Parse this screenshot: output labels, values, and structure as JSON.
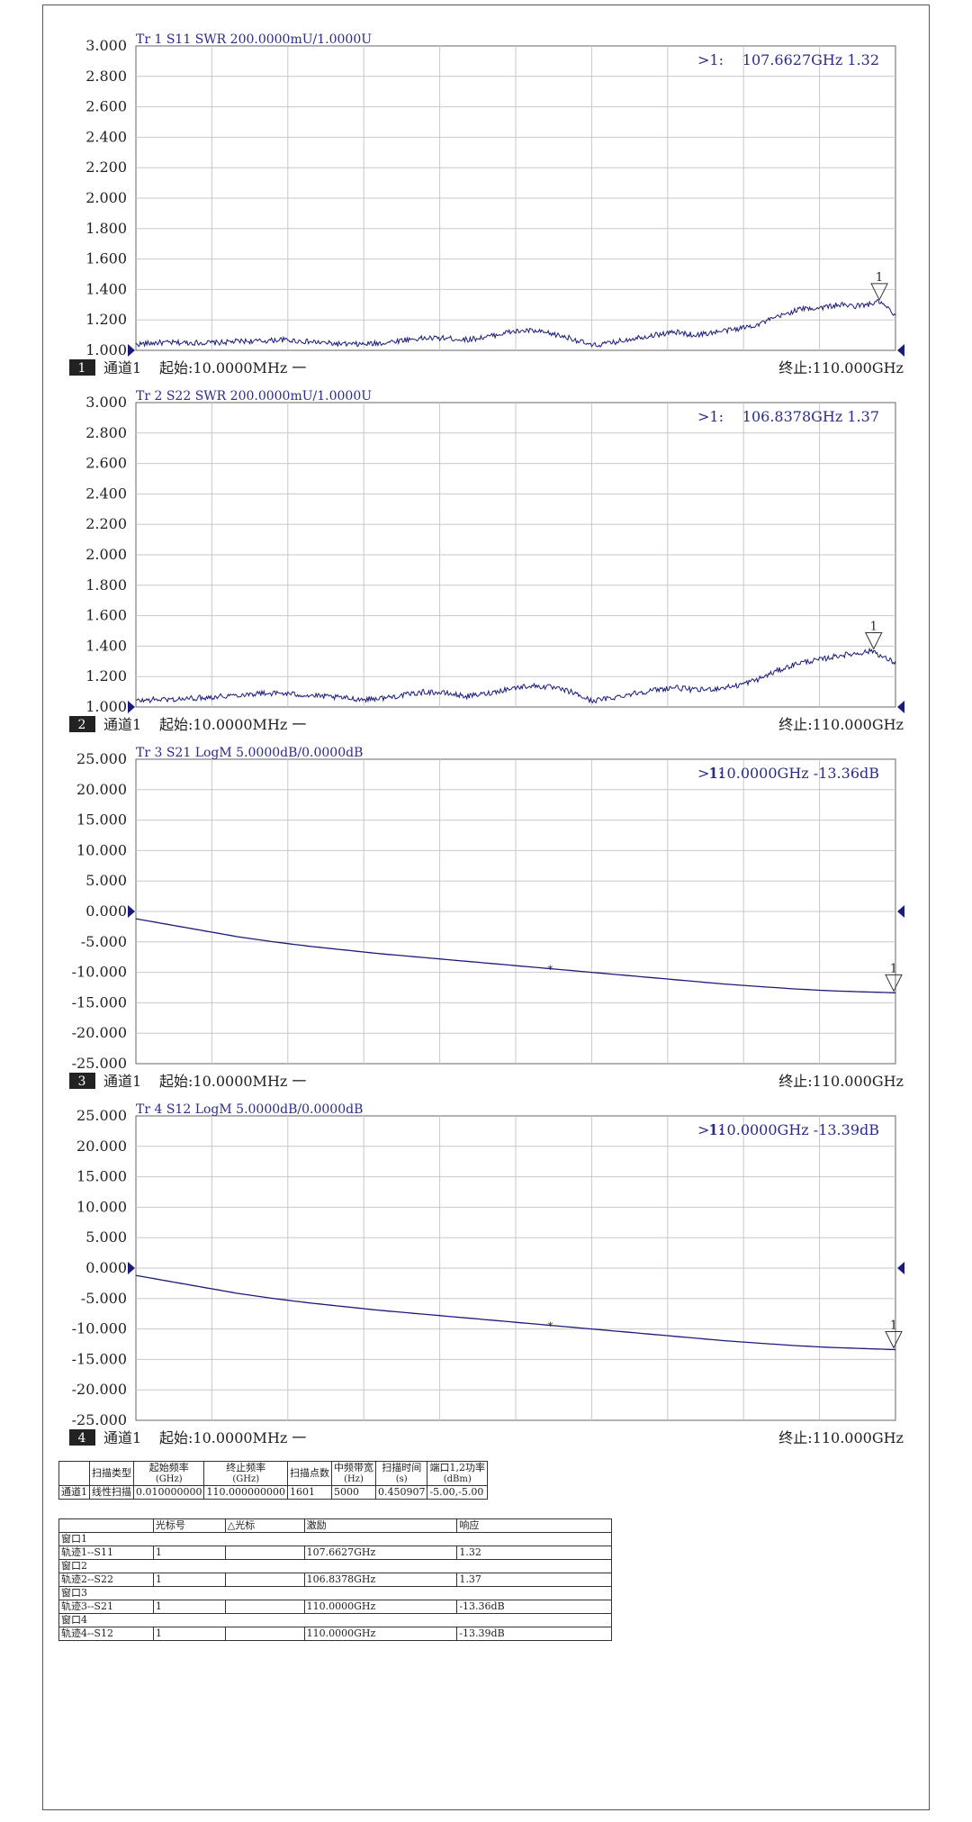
{
  "charts": [
    {
      "index": "1",
      "trace_title": "Tr 1  S11 SWR 200.0000mU/1.0000U",
      "marker_readout_prefix": ">1:",
      "marker_readout_value": "107.6627GHz 1.32",
      "marker_label": "1",
      "footer_channel": "通道1",
      "footer_start": "起始:10.0000MHz 一",
      "footer_stop": "终止:110.000GHz",
      "trace_color": "#1b1b7a"
    },
    {
      "index": "2",
      "trace_title": "Tr 2  S22 SWR 200.0000mU/1.0000U",
      "marker_readout_prefix": ">1:",
      "marker_readout_value": "106.8378GHz 1.37",
      "marker_label": "1",
      "footer_channel": "通道1",
      "footer_start": "起始:10.0000MHz 一",
      "footer_stop": "终止:110.000GHz",
      "trace_color": "#1b1b7a"
    },
    {
      "index": "3",
      "trace_title": "Tr 3  S21 LogM 5.0000dB/0.0000dB",
      "marker_readout_prefix": ">1:",
      "marker_readout_value": "110.0000GHz -13.36dB",
      "marker_label": "1",
      "footer_channel": "通道1",
      "footer_start": "起始:10.0000MHz 一",
      "footer_stop": "终止:110.000GHz",
      "trace_color": "#1b1b7a"
    },
    {
      "index": "4",
      "trace_title": "Tr 4  S12 LogM 5.0000dB/0.0000dB",
      "marker_readout_prefix": ">1:",
      "marker_readout_value": "110.0000GHz -13.39dB",
      "marker_label": "1",
      "footer_channel": "通道1",
      "footer_start": "起始:10.0000MHz 一",
      "footer_stop": "终止:110.000GHz",
      "trace_color": "#1b1b7a"
    }
  ],
  "chart_data": [
    {
      "type": "line",
      "title": "Tr 1  S11 SWR 200.0000mU/1.0000U",
      "xlim": [
        0.01,
        110
      ],
      "ylim": [
        1.0,
        3.0
      ],
      "y_ticks": [
        "3.000",
        "2.800",
        "2.600",
        "2.400",
        "2.200",
        "2.000",
        "1.800",
        "1.600",
        "1.400",
        "1.200",
        "1.000"
      ],
      "grid": true,
      "series": [
        {
          "x": [
            0.01,
            3,
            6,
            9,
            12,
            15,
            18,
            21,
            24,
            27,
            30,
            33,
            36,
            39,
            42,
            45,
            48,
            51,
            54,
            57,
            60,
            63,
            66,
            69,
            72,
            75,
            78,
            81,
            84,
            87,
            90,
            93,
            96,
            99,
            102,
            104,
            106,
            107.66,
            109,
            110
          ],
          "y": [
            1.04,
            1.05,
            1.05,
            1.05,
            1.05,
            1.06,
            1.06,
            1.07,
            1.06,
            1.05,
            1.04,
            1.04,
            1.05,
            1.07,
            1.08,
            1.08,
            1.07,
            1.09,
            1.12,
            1.13,
            1.11,
            1.08,
            1.03,
            1.05,
            1.08,
            1.1,
            1.12,
            1.1,
            1.12,
            1.14,
            1.17,
            1.22,
            1.27,
            1.28,
            1.3,
            1.29,
            1.3,
            1.32,
            1.27,
            1.22
          ]
        }
      ],
      "markers": [
        {
          "label": "1",
          "x": 107.6627,
          "y": 1.32
        }
      ]
    },
    {
      "type": "line",
      "title": "Tr 2  S22 SWR 200.0000mU/1.0000U",
      "xlim": [
        0.01,
        110
      ],
      "ylim": [
        1.0,
        3.0
      ],
      "y_ticks": [
        "3.000",
        "2.800",
        "2.600",
        "2.400",
        "2.200",
        "2.000",
        "1.800",
        "1.600",
        "1.400",
        "1.200",
        "1.000"
      ],
      "grid": true,
      "series": [
        {
          "x": [
            0.01,
            3,
            6,
            9,
            12,
            15,
            18,
            21,
            24,
            27,
            30,
            33,
            36,
            39,
            42,
            45,
            48,
            51,
            54,
            57,
            60,
            63,
            66,
            69,
            72,
            75,
            78,
            81,
            84,
            87,
            90,
            93,
            96,
            99,
            102,
            104,
            106.84,
            108,
            109,
            110
          ],
          "y": [
            1.04,
            1.05,
            1.05,
            1.06,
            1.07,
            1.08,
            1.09,
            1.09,
            1.08,
            1.07,
            1.06,
            1.05,
            1.06,
            1.08,
            1.1,
            1.09,
            1.07,
            1.09,
            1.12,
            1.14,
            1.13,
            1.1,
            1.04,
            1.06,
            1.09,
            1.11,
            1.13,
            1.11,
            1.12,
            1.14,
            1.18,
            1.24,
            1.29,
            1.31,
            1.34,
            1.35,
            1.37,
            1.33,
            1.31,
            1.29
          ]
        }
      ],
      "markers": [
        {
          "label": "1",
          "x": 106.8378,
          "y": 1.37
        }
      ]
    },
    {
      "type": "line",
      "title": "Tr 3  S21 LogM 5.0000dB/0.0000dB",
      "xlim": [
        0.01,
        110
      ],
      "ylim": [
        -25,
        25
      ],
      "y_ticks": [
        "25.000",
        "20.000",
        "15.000",
        "10.000",
        "5.000",
        "0.000",
        "-5.000",
        "-10.000",
        "-15.000",
        "-20.000",
        "-25.000"
      ],
      "grid": true,
      "reference_level": 0,
      "series": [
        {
          "x": [
            0.01,
            5,
            10,
            15,
            20,
            25,
            30,
            35,
            40,
            45,
            50,
            55,
            60,
            65,
            70,
            75,
            80,
            85,
            90,
            95,
            100,
            105,
            110
          ],
          "y": [
            -1.2,
            -2.2,
            -3.2,
            -4.2,
            -5.0,
            -5.7,
            -6.3,
            -6.9,
            -7.4,
            -7.9,
            -8.4,
            -8.9,
            -9.4,
            -9.9,
            -10.4,
            -10.9,
            -11.4,
            -11.9,
            -12.3,
            -12.7,
            -13.0,
            -13.2,
            -13.36
          ]
        }
      ],
      "markers": [
        {
          "label": "1",
          "x": 110.0,
          "y": -13.36
        }
      ]
    },
    {
      "type": "line",
      "title": "Tr 4  S12 LogM 5.0000dB/0.0000dB",
      "xlim": [
        0.01,
        110
      ],
      "ylim": [
        -25,
        25
      ],
      "y_ticks": [
        "25.000",
        "20.000",
        "15.000",
        "10.000",
        "5.000",
        "0.000",
        "-5.000",
        "-10.000",
        "-15.000",
        "-20.000",
        "-25.000"
      ],
      "grid": true,
      "reference_level": 0,
      "series": [
        {
          "x": [
            0.01,
            5,
            10,
            15,
            20,
            25,
            30,
            35,
            40,
            45,
            50,
            55,
            60,
            65,
            70,
            75,
            80,
            85,
            90,
            95,
            100,
            105,
            110
          ],
          "y": [
            -1.2,
            -2.2,
            -3.2,
            -4.2,
            -5.0,
            -5.7,
            -6.3,
            -6.9,
            -7.4,
            -7.9,
            -8.4,
            -8.9,
            -9.4,
            -9.9,
            -10.4,
            -10.9,
            -11.4,
            -11.9,
            -12.3,
            -12.7,
            -13.0,
            -13.2,
            -13.39
          ]
        }
      ],
      "markers": [
        {
          "label": "1",
          "x": 110.0,
          "y": -13.39
        }
      ]
    }
  ],
  "sweep_table": {
    "headers": [
      {
        "main": "",
        "sub": ""
      },
      {
        "main": "扫描类型",
        "sub": ""
      },
      {
        "main": "起始频率",
        "sub": "(GHz)"
      },
      {
        "main": "终止频率",
        "sub": "(GHz)"
      },
      {
        "main": "扫描点数",
        "sub": ""
      },
      {
        "main": "中频带宽",
        "sub": "(Hz)"
      },
      {
        "main": "扫描时间",
        "sub": "(s)"
      },
      {
        "main": "端口1,2功率",
        "sub": "(dBm)"
      }
    ],
    "row": [
      "通道1",
      "线性扫描",
      "0.010000000",
      "110.000000000",
      "1601",
      "5000",
      "0.450907",
      "-5.00,-5.00"
    ]
  },
  "marker_table": {
    "headers": [
      "",
      "光标号",
      "△光标",
      "激励",
      "响应"
    ],
    "groups": [
      {
        "window": "窗口1",
        "trace": "轨迹1--S11",
        "marker": "1",
        "delta": "",
        "stimulus": "107.6627GHz",
        "response": "1.32"
      },
      {
        "window": "窗口2",
        "trace": "轨迹2--S22",
        "marker": "1",
        "delta": "",
        "stimulus": "106.8378GHz",
        "response": "1.37"
      },
      {
        "window": "窗口3",
        "trace": "轨迹3--S21",
        "marker": "1",
        "delta": "",
        "stimulus": "110.0000GHz",
        "response": "-13.36dB"
      },
      {
        "window": "窗口4",
        "trace": "轨迹4--S12",
        "marker": "1",
        "delta": "",
        "stimulus": "110.0000GHz",
        "response": "-13.39dB"
      }
    ]
  }
}
